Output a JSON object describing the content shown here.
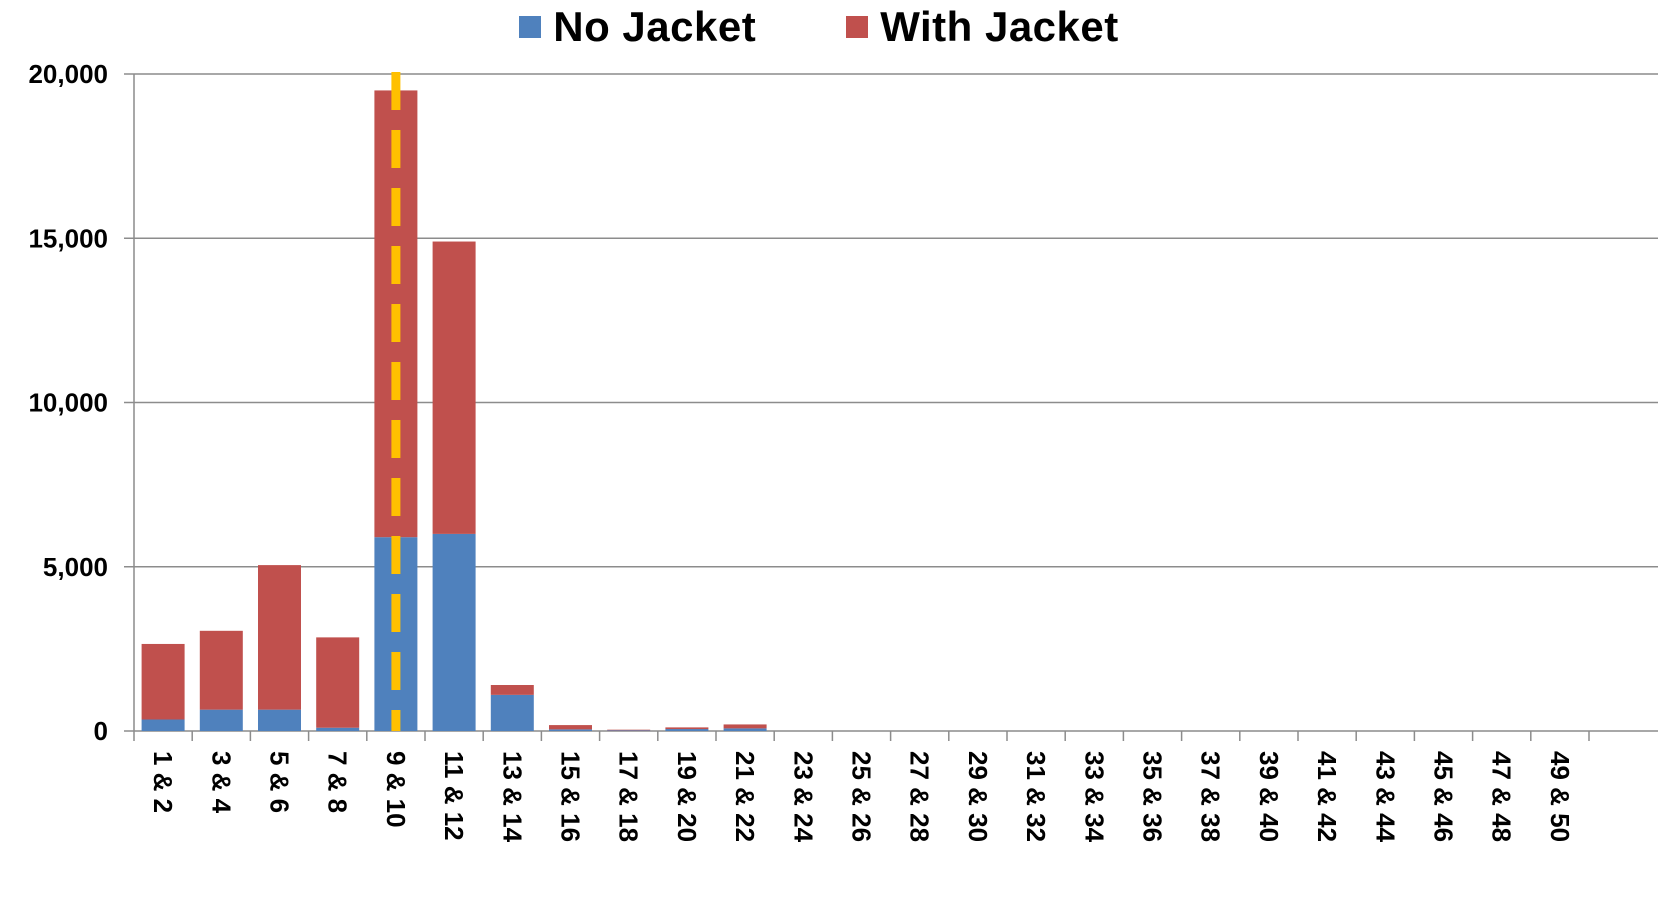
{
  "chart_data": {
    "type": "bar",
    "stacked": true,
    "title": "",
    "xlabel": "",
    "ylabel": "",
    "ylim": [
      0,
      20000
    ],
    "yticks": [
      "0",
      "5,000",
      "10,000",
      "15,000",
      "20,000"
    ],
    "ytick_values": [
      0,
      5000,
      10000,
      15000,
      20000
    ],
    "grid": true,
    "legend_position": "top-center",
    "categories": [
      "1 & 2",
      "3 & 4",
      "5 & 6",
      "7 & 8",
      "9 & 10",
      "11 & 12",
      "13 & 14",
      "15 & 16",
      "17 & 18",
      "19 & 20",
      "21 & 22",
      "23 & 24",
      "25 & 26",
      "27 & 28",
      "29 & 30",
      "31 & 32",
      "33 & 34",
      "35 & 36",
      "37 & 38",
      "39 & 40",
      "41 & 42",
      "43 & 44",
      "45 & 46",
      "47 & 48",
      "49 & 50"
    ],
    "series": [
      {
        "name": "No Jacket",
        "color": "#4f81bd",
        "values": [
          350,
          650,
          650,
          100,
          5900,
          6000,
          1100,
          50,
          20,
          60,
          80,
          0,
          0,
          0,
          0,
          0,
          0,
          0,
          0,
          0,
          0,
          0,
          0,
          0,
          0
        ]
      },
      {
        "name": "With Jacket",
        "color": "#c0504d",
        "values": [
          2300,
          2400,
          4400,
          2750,
          13600,
          8900,
          300,
          130,
          20,
          50,
          120,
          0,
          0,
          0,
          0,
          0,
          0,
          0,
          0,
          0,
          0,
          0,
          0,
          0,
          0
        ]
      }
    ],
    "reference_line": {
      "category": "9 & 10",
      "style": "dashed",
      "color": "#ffc000"
    }
  }
}
